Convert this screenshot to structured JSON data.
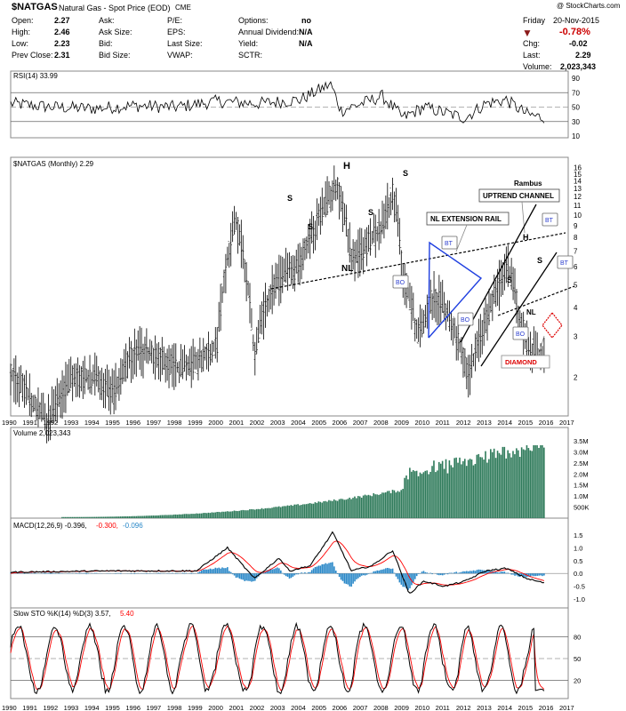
{
  "header": {
    "symbol": "$NATGAS",
    "name": "Natural Gas - Spot Price (EOD)",
    "exchange": "CME",
    "watermark": "@ StockCharts.com",
    "date_day": "Friday",
    "date": "20-Nov-2015",
    "change_pct": "-0.78%",
    "change_pct_color": "#cc0000",
    "chg_label": "Chg:",
    "chg": "-0.02",
    "last_label": "Last:",
    "last": "2.29",
    "volume_label": "Volume:",
    "volume": "2,023,343"
  },
  "quote": {
    "open_label": "Open:",
    "open": "2.27",
    "high_label": "High:",
    "high": "2.46",
    "low_label": "Low:",
    "low": "2.23",
    "prev_label": "Prev Close:",
    "prev": "2.31",
    "ask_label": "Ask:",
    "asksize_label": "Ask Size:",
    "bid_label": "Bid:",
    "bidsize_label": "Bid Size:",
    "pe_label": "P/E:",
    "eps_label": "EPS:",
    "lastsize_label": "Last Size:",
    "vwap_label": "VWAP:",
    "options_label": "Options:",
    "options": "no",
    "div_label": "Annual Dividend:",
    "div": "N/A",
    "yield_label": "Yield:",
    "yield": "N/A",
    "sctr_label": "SCTR:"
  },
  "chart_data": [
    {
      "type": "line",
      "legend": "RSI(14) 33.99",
      "y_ticks": [
        90,
        70,
        50,
        30,
        10
      ],
      "levels": [
        70,
        50,
        30
      ],
      "ylim": [
        10,
        90
      ],
      "x": [
        1990,
        1992,
        1994,
        1996,
        1998,
        2000,
        2002,
        2004,
        2005.5,
        2006,
        2008,
        2009,
        2010,
        2012,
        2013,
        2014,
        2015,
        2016
      ],
      "values": [
        55,
        50,
        48,
        52,
        50,
        58,
        55,
        60,
        82,
        45,
        65,
        35,
        50,
        35,
        55,
        60,
        40,
        34
      ]
    },
    {
      "type": "line",
      "legend": "$NATGAS (Monthly) 2.29",
      "scale": "log",
      "y_ticks": [
        16,
        15,
        14,
        13,
        12,
        11,
        10,
        9,
        8,
        7,
        6,
        5,
        4,
        3,
        2
      ],
      "ylim": [
        1.4,
        16.5
      ],
      "x_ticks": [
        1990,
        1991,
        1992,
        1993,
        1994,
        1995,
        1996,
        1997,
        1998,
        1999,
        2000,
        2001,
        2002,
        2003,
        2004,
        2005,
        2006,
        2007,
        2008,
        2009,
        2010,
        2011,
        2012,
        2013,
        2014,
        2015,
        2016,
        2017
      ],
      "x": [
        1990,
        1991,
        1991.8,
        1993,
        1994,
        1995,
        1996,
        1997,
        1998,
        1999,
        2000,
        2000.9,
        2001.8,
        2002.5,
        2003.2,
        2004,
        2005,
        2005.8,
        2006.5,
        2007,
        2008,
        2008.5,
        2009,
        2009.7,
        2010.5,
        2011,
        2012.2,
        2013,
        2014.1,
        2014.6,
        2015,
        2015.9
      ],
      "values": [
        2.1,
        1.6,
        1.3,
        2.0,
        2.0,
        1.7,
        2.6,
        2.5,
        2.2,
        2.3,
        2.8,
        9.5,
        2.4,
        4.5,
        5.5,
        6.0,
        10.0,
        13.5,
        6.5,
        7.0,
        9.0,
        12.5,
        5.5,
        3.0,
        4.5,
        4.0,
        2.0,
        3.5,
        6.0,
        3.8,
        2.8,
        2.3
      ],
      "labels": {
        "title": "Rambus",
        "channel": "UPTREND CHANNEL",
        "rail": "NL EXTENSION RAIL",
        "h": "H",
        "s": "S",
        "nl": "NL",
        "bo": "BO",
        "bt": "BT",
        "diamond": "DIAMOND"
      }
    },
    {
      "type": "bar",
      "legend": "Volume 2,023,343",
      "y_ticks": [
        "3.5M",
        "3.0M",
        "2.5M",
        "2.0M",
        "1.5M",
        "1.0M",
        "500K"
      ],
      "color": "#2e7a5a"
    },
    {
      "type": "line",
      "legend_main": "MACD(12,26,9) -0.396,",
      "legend_signal": "-0.300,",
      "legend_hist": "-0.096",
      "color_macd": "#000000",
      "color_signal": "#ff0000",
      "color_hist": "#2a88c8",
      "y_ticks": [
        "1.5",
        "1.0",
        "0.5",
        "0.0",
        "-0.5",
        "-1.0"
      ],
      "ylim": [
        -1.2,
        1.7
      ]
    },
    {
      "type": "line",
      "legend_main": "Slow STO %K(14) %D(3) 3.57,",
      "legend_d": "5.40",
      "y_ticks": [
        80,
        50,
        20
      ],
      "levels": [
        80,
        50,
        20
      ],
      "ylim": [
        0,
        100
      ]
    }
  ]
}
